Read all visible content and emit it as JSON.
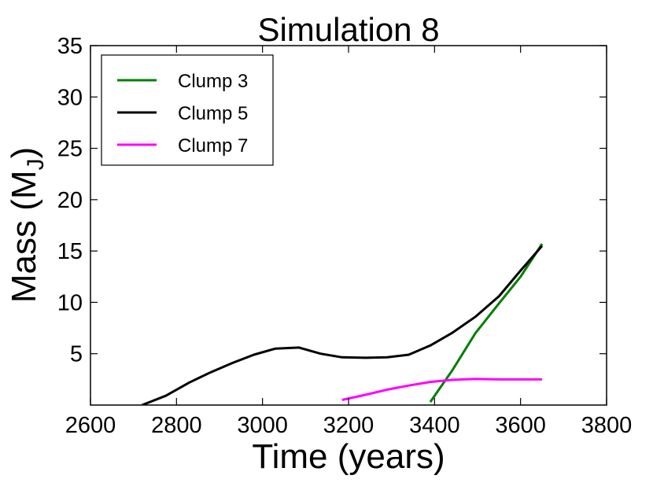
{
  "chart_data": {
    "type": "line",
    "title": "Simulation 8",
    "xlabel": "Time (years)",
    "ylabel": "Mass (M",
    "ylabel_subscript": "J",
    "ylabel_suffix": ")",
    "xlim": [
      2600,
      3800
    ],
    "ylim": [
      0,
      35
    ],
    "xticks": [
      2600,
      2800,
      3000,
      3200,
      3400,
      3600,
      3800
    ],
    "yticks": [
      5,
      10,
      15,
      20,
      25,
      30,
      35
    ],
    "grid": false,
    "legend_position": "top-left",
    "series": [
      {
        "name": "Clump 3",
        "color": "#008000",
        "x": [
          3390,
          3440,
          3495,
          3550,
          3600,
          3650
        ],
        "y": [
          0.3,
          3.3,
          7.0,
          9.9,
          12.5,
          15.7
        ]
      },
      {
        "name": "Clump 5",
        "color": "#000000",
        "x": [
          2720,
          2775,
          2830,
          2880,
          2930,
          2980,
          3030,
          3085,
          3135,
          3185,
          3240,
          3290,
          3340,
          3390,
          3440,
          3495,
          3550,
          3600,
          3650
        ],
        "y": [
          0.0,
          0.9,
          2.2,
          3.2,
          4.1,
          4.9,
          5.5,
          5.6,
          5.0,
          4.65,
          4.6,
          4.65,
          4.9,
          5.8,
          7.0,
          8.6,
          10.6,
          13.1,
          15.5
        ]
      },
      {
        "name": "Clump 7",
        "color": "#ff00ff",
        "x": [
          3185,
          3240,
          3290,
          3340,
          3390,
          3440,
          3495,
          3550,
          3600,
          3650
        ],
        "y": [
          0.5,
          1.0,
          1.5,
          1.9,
          2.25,
          2.45,
          2.55,
          2.5,
          2.5,
          2.5
        ]
      }
    ]
  }
}
